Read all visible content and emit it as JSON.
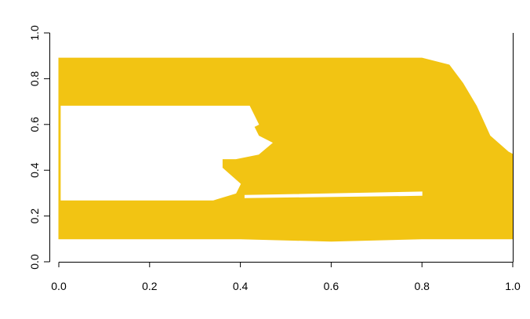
{
  "chart_data": {
    "type": "area",
    "title": "",
    "xlabel": "",
    "ylabel": "",
    "xlim": [
      0,
      1
    ],
    "ylim": [
      0,
      1
    ],
    "x_ticks": [
      "0.0",
      "0.2",
      "0.4",
      "0.6",
      "0.8",
      "1.0"
    ],
    "y_ticks": [
      "0.0",
      "0.2",
      "0.4",
      "0.6",
      "0.8",
      "1.0"
    ],
    "grid": false,
    "colors": {
      "fill": "#f2c413",
      "hole": "#ffffff",
      "axis": "#000000"
    },
    "series": [
      {
        "role": "outer-region",
        "x": [
          0.0,
          0.3,
          0.6,
          0.8,
          0.86,
          0.89,
          0.92,
          0.95,
          0.99,
          1.0,
          1.0,
          0.8,
          0.6,
          0.4,
          0.2,
          0.0
        ],
        "y": [
          0.89,
          0.89,
          0.89,
          0.89,
          0.86,
          0.78,
          0.68,
          0.55,
          0.48,
          0.47,
          0.1,
          0.1,
          0.09,
          0.1,
          0.1,
          0.1
        ]
      },
      {
        "role": "hole",
        "x": [
          0.005,
          0.42,
          0.44,
          0.43,
          0.44,
          0.47,
          0.44,
          0.39,
          0.36,
          0.36,
          0.4,
          0.39,
          0.34,
          0.005
        ],
        "y": [
          0.68,
          0.68,
          0.6,
          0.59,
          0.55,
          0.52,
          0.47,
          0.45,
          0.45,
          0.41,
          0.34,
          0.3,
          0.27,
          0.27
        ]
      },
      {
        "role": "gap-strip",
        "x": [
          0.41,
          0.8,
          0.8,
          0.41
        ],
        "y": [
          0.29,
          0.305,
          0.29,
          0.28
        ]
      }
    ]
  }
}
